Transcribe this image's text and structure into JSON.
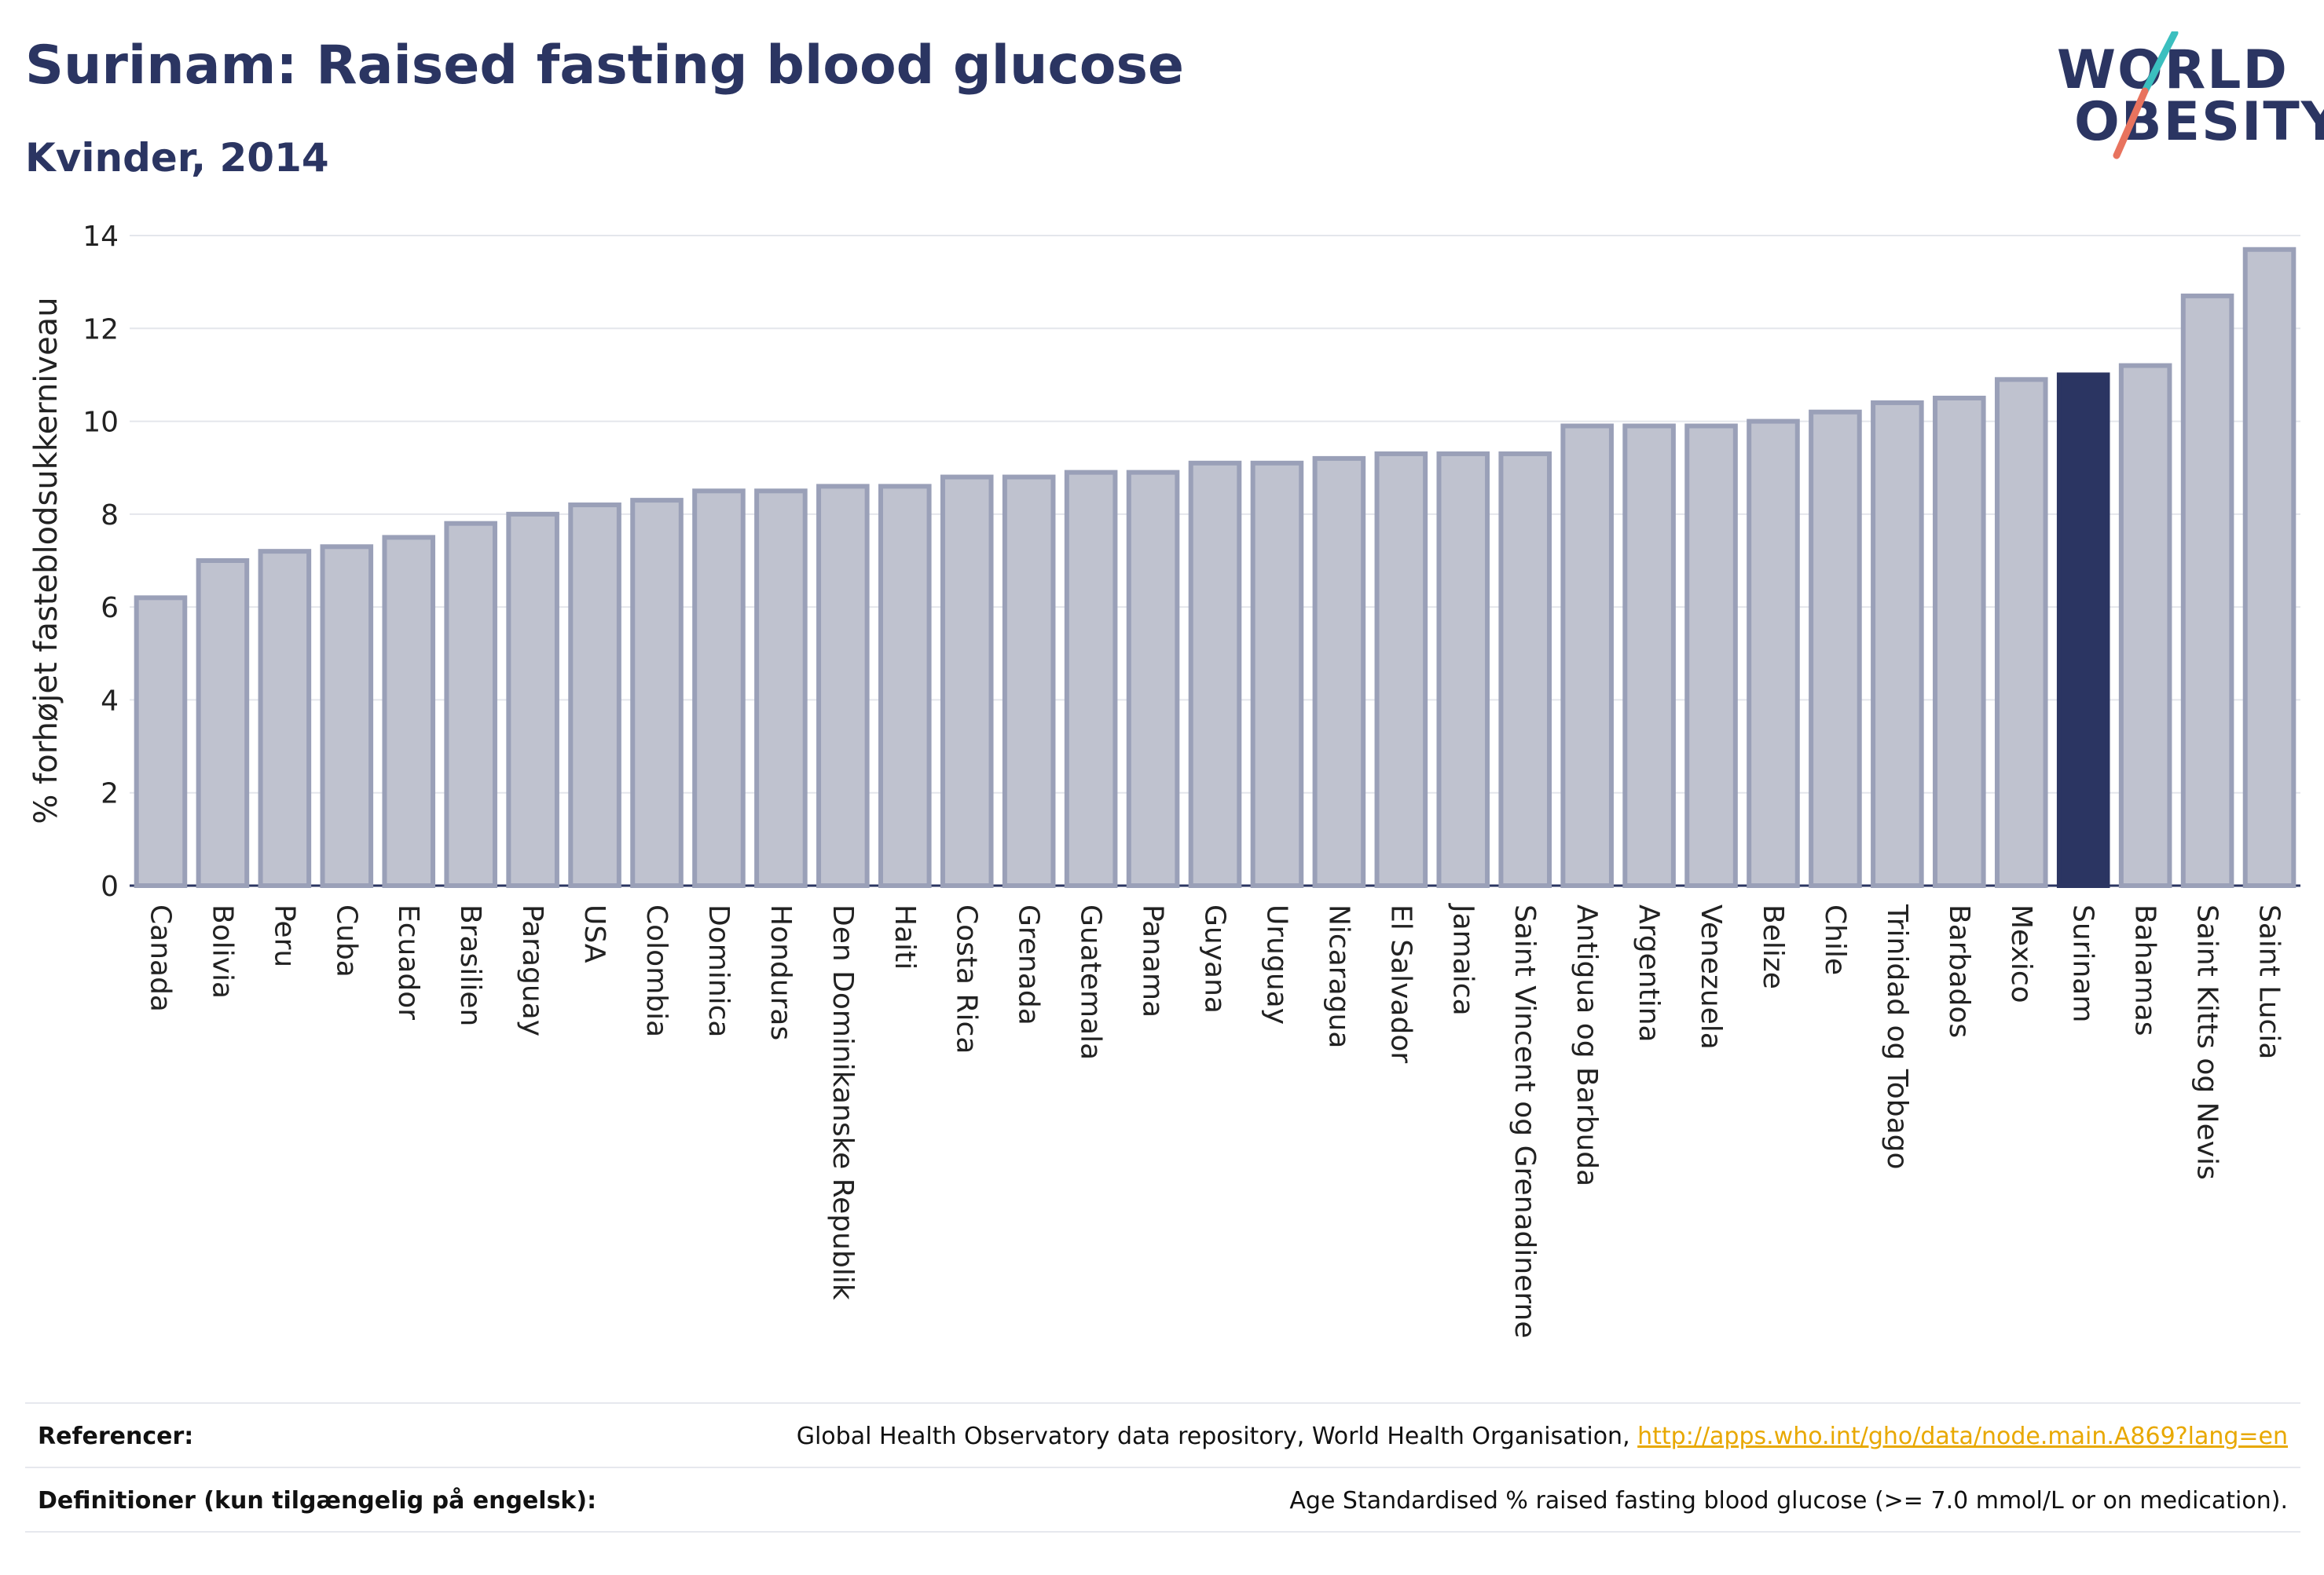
{
  "title": "Surinam: Raised fasting blood glucose",
  "subtitle": "Kvinder, 2014",
  "logo": {
    "line1": "WORLD",
    "line2": "OBESITY"
  },
  "colors": {
    "bar": "#bfc2cf",
    "bar_border": "#9aa0b8",
    "highlight": "#2b3562",
    "accent_teal": "#3bbfbf",
    "accent_coral": "#e8735e",
    "link": "#e8a800"
  },
  "chart_data": {
    "type": "bar",
    "ylabel": "% forhøjet fasteblodsukkerniveau",
    "ylim": [
      0,
      14
    ],
    "yticks": [
      0,
      2,
      4,
      6,
      8,
      10,
      12,
      14
    ],
    "grid": true,
    "highlight": "Surinam",
    "categories": [
      "Canada",
      "Bolivia",
      "Peru",
      "Cuba",
      "Ecuador",
      "Brasilien",
      "Paraguay",
      "USA",
      "Colombia",
      "Dominica",
      "Honduras",
      "Den Dominikanske Republik",
      "Haiti",
      "Costa Rica",
      "Grenada",
      "Guatemala",
      "Panama",
      "Guyana",
      "Uruguay",
      "Nicaragua",
      "El Salvador",
      "Jamaica",
      "Saint Vincent og Grenadinerne",
      "Antigua og Barbuda",
      "Argentina",
      "Venezuela",
      "Belize",
      "Chile",
      "Trinidad og Tobago",
      "Barbados",
      "Mexico",
      "Surinam",
      "Bahamas",
      "Saint Kitts og Nevis",
      "Saint Lucia"
    ],
    "values": [
      6.2,
      7.0,
      7.2,
      7.3,
      7.5,
      7.8,
      8.0,
      8.2,
      8.3,
      8.5,
      8.5,
      8.6,
      8.6,
      8.8,
      8.8,
      8.9,
      8.9,
      9.1,
      9.1,
      9.2,
      9.3,
      9.3,
      9.3,
      9.9,
      9.9,
      9.9,
      10.0,
      10.2,
      10.4,
      10.5,
      10.9,
      11.0,
      11.2,
      12.7,
      13.7
    ]
  },
  "footer": {
    "references_label": "Referencer:",
    "references_text": "Global Health Observatory data repository, World Health Organisation, ",
    "references_link": "http://apps.who.int/gho/data/node.main.A869?lang=en",
    "definitions_label": "Definitioner (kun tilgængelig på engelsk):",
    "definitions_text": "Age Standardised % raised fasting blood glucose (>= 7.0 mmol/L or on medication)."
  }
}
